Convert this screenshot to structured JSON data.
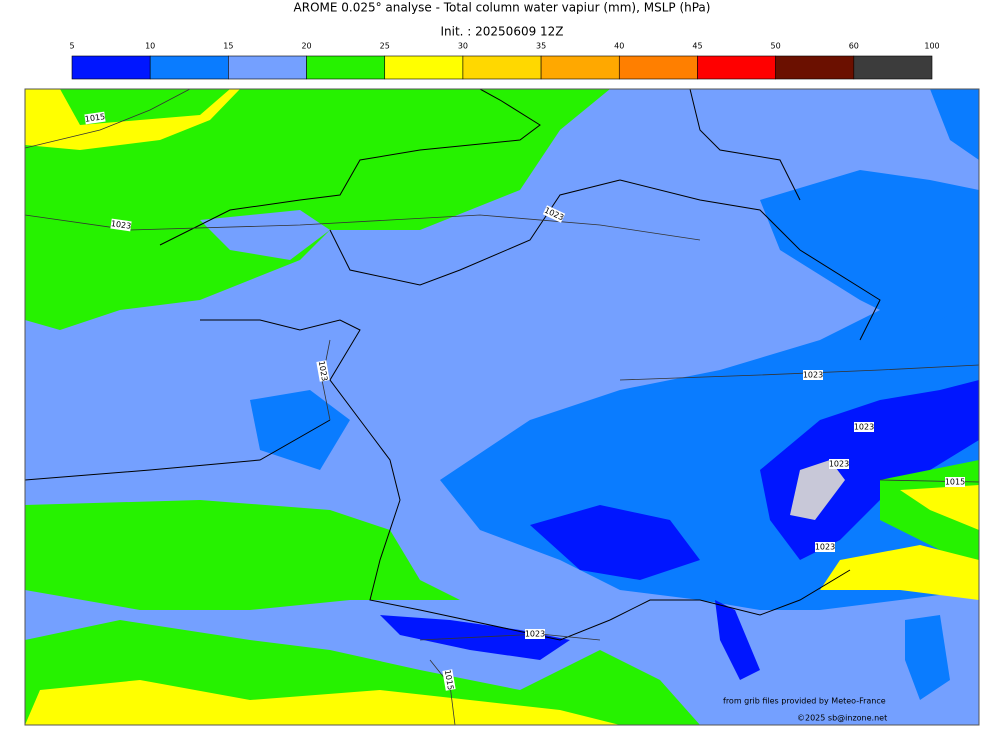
{
  "header": {
    "title": "AROME 0.025° analyse - Total column water vapiur (mm), MSLP (hPa)",
    "init": "Init. : 20250609 12Z"
  },
  "colorbar": {
    "ticks": [
      5,
      10,
      15,
      20,
      25,
      30,
      35,
      40,
      45,
      50,
      60,
      100
    ],
    "colors": [
      "#0016ff",
      "#0a7cff",
      "#74a0ff",
      "#26f200",
      "#ffff00",
      "#ffd800",
      "#ffa800",
      "#ff7f00",
      "#ff0000",
      "#6b1000",
      "#3c3c3c"
    ]
  },
  "map": {
    "contour_labels": [
      "1015",
      "1023",
      "1023",
      "1023",
      "1023",
      "1023",
      "1023",
      "1015",
      "1023",
      "1023",
      "1015"
    ],
    "credits": [
      "from grib files provided by Meteo-France",
      "©2025 sb@inzone.net"
    ]
  }
}
